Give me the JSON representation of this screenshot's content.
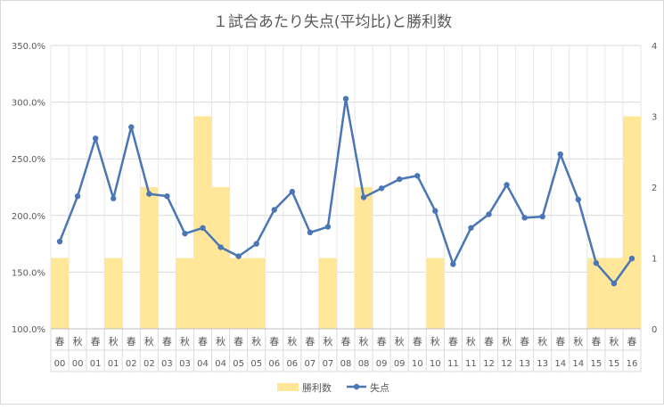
{
  "chart_data": {
    "type": "bar+line",
    "title": "１試合あたり失点(平均比)と勝利数",
    "categories_row1": [
      "春",
      "秋",
      "春",
      "秋",
      "春",
      "秋",
      "春",
      "秋",
      "春",
      "秋",
      "春",
      "秋",
      "春",
      "秋",
      "春",
      "秋",
      "春",
      "秋",
      "春",
      "秋",
      "春",
      "秋",
      "春",
      "秋",
      "春",
      "秋",
      "春",
      "秋",
      "春",
      "秋",
      "春",
      "秋",
      "春"
    ],
    "categories_row2": [
      "00",
      "00",
      "01",
      "01",
      "02",
      "02",
      "03",
      "03",
      "04",
      "04",
      "05",
      "05",
      "06",
      "06",
      "07",
      "07",
      "08",
      "08",
      "09",
      "09",
      "10",
      "10",
      "11",
      "11",
      "12",
      "12",
      "13",
      "13",
      "14",
      "14",
      "15",
      "15",
      "16"
    ],
    "left_axis": {
      "min": 100,
      "max": 350,
      "step": 50,
      "tick_labels": [
        "100.0%",
        "150.0%",
        "200.0%",
        "250.0%",
        "300.0%",
        "350.0%"
      ]
    },
    "right_axis": {
      "min": 0,
      "max": 4,
      "step": 1,
      "tick_labels": [
        "0",
        "1",
        "2",
        "3",
        "4"
      ]
    },
    "series": [
      {
        "name": "勝利数",
        "type": "bar",
        "axis": "right",
        "color": "#FFE699",
        "values": [
          1,
          0,
          0,
          1,
          0,
          2,
          0,
          1,
          3,
          2,
          1,
          1,
          0,
          0,
          0,
          1,
          0,
          2,
          0,
          0,
          0,
          1,
          0,
          0,
          0,
          0,
          0,
          0,
          0,
          0,
          1,
          1,
          3
        ]
      },
      {
        "name": "失点",
        "type": "line",
        "axis": "left",
        "color": "#4A76B6",
        "values": [
          177,
          217,
          268,
          215,
          278,
          219,
          217,
          184,
          189,
          172,
          164,
          175,
          205,
          221,
          185,
          190,
          303,
          216,
          224,
          232,
          235,
          204,
          157,
          189,
          201,
          227,
          198,
          199,
          254,
          214,
          158,
          140,
          162
        ]
      }
    ],
    "legend": "bottom",
    "grid": true
  }
}
